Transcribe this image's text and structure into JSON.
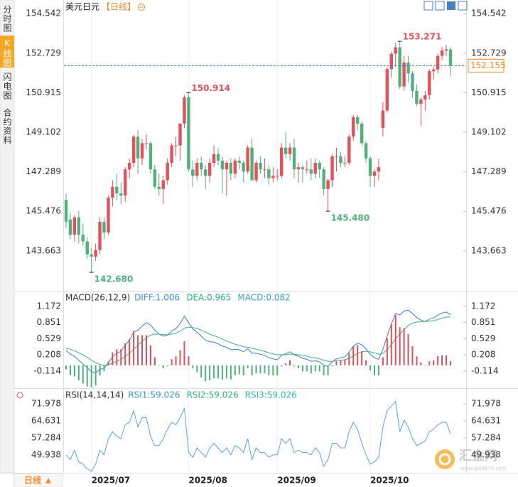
{
  "ui": {
    "tabs": [
      "分时图",
      "K线图",
      "闪电图",
      "合约资料"
    ],
    "active_tab": 1,
    "active_color": "#f5a623",
    "period_button": "日线",
    "watermark": {
      "name": "汇金网",
      "url": "www.gold678.com"
    }
  },
  "chart_data": [
    {
      "type": "candlestick",
      "title": "美元日元",
      "period": "【日线】",
      "categories": [
        null,
        null,
        null,
        null,
        null,
        null,
        "2025/07",
        null,
        null,
        null,
        null,
        null,
        null,
        null,
        null,
        null,
        null,
        null,
        null,
        null,
        null,
        null,
        null,
        null,
        null,
        null,
        null,
        null,
        null,
        "2025/08",
        null,
        null,
        null,
        null,
        null,
        null,
        null,
        null,
        null,
        null,
        null,
        null,
        null,
        null,
        null,
        null,
        null,
        null,
        null,
        null,
        "2025/09",
        null,
        null,
        null,
        null,
        null,
        null,
        null,
        null,
        null,
        null,
        null,
        null,
        null,
        null,
        null,
        null,
        null,
        null,
        null,
        null,
        null,
        "2025/10",
        null,
        null,
        null,
        null,
        null,
        null,
        null,
        null,
        null,
        null,
        null,
        null,
        null,
        null,
        null,
        null,
        null,
        null,
        null
      ],
      "ohlc": [
        [
          146.0,
          146.3,
          144.7,
          145.0
        ],
        [
          145.1,
          145.4,
          144.2,
          144.4
        ],
        [
          144.4,
          145.3,
          144.1,
          145.2
        ],
        [
          145.2,
          145.5,
          144.0,
          144.4
        ],
        [
          144.4,
          144.9,
          143.9,
          144.1
        ],
        [
          144.1,
          144.3,
          143.3,
          143.5
        ],
        [
          143.5,
          143.8,
          142.68,
          143.4
        ],
        [
          143.4,
          144.0,
          143.2,
          143.7
        ],
        [
          143.7,
          145.2,
          143.5,
          145.0
        ],
        [
          145.0,
          145.2,
          144.2,
          144.5
        ],
        [
          144.5,
          146.2,
          144.4,
          146.1
        ],
        [
          146.1,
          146.9,
          145.7,
          146.6
        ],
        [
          146.6,
          147.2,
          146.0,
          146.3
        ],
        [
          146.3,
          146.8,
          145.8,
          146.2
        ],
        [
          146.2,
          147.5,
          145.9,
          147.4
        ],
        [
          147.4,
          147.9,
          147.0,
          147.7
        ],
        [
          147.7,
          149.0,
          147.5,
          148.9
        ],
        [
          148.9,
          149.2,
          147.2,
          147.9
        ],
        [
          147.9,
          148.8,
          147.6,
          148.6
        ],
        [
          148.6,
          149.0,
          148.3,
          148.6
        ],
        [
          148.6,
          148.7,
          147.2,
          147.4
        ],
        [
          147.4,
          147.6,
          146.5,
          146.6
        ],
        [
          146.6,
          147.2,
          146.2,
          146.5
        ],
        [
          146.5,
          147.1,
          145.8,
          146.9
        ],
        [
          146.9,
          147.9,
          146.7,
          147.7
        ],
        [
          147.7,
          148.6,
          147.5,
          148.5
        ],
        [
          148.5,
          148.9,
          148.0,
          148.5
        ],
        [
          148.5,
          149.5,
          147.8,
          149.5
        ],
        [
          149.5,
          150.8,
          149.3,
          150.7
        ],
        [
          150.7,
          150.914,
          147.3,
          147.4
        ],
        [
          147.4,
          147.8,
          146.6,
          147.1
        ],
        [
          147.1,
          147.9,
          146.9,
          147.7
        ],
        [
          147.7,
          148.0,
          147.1,
          147.4
        ],
        [
          147.4,
          147.6,
          146.5,
          147.1
        ],
        [
          147.1,
          147.9,
          146.8,
          147.7
        ],
        [
          147.7,
          148.5,
          147.5,
          148.1
        ],
        [
          148.1,
          148.4,
          147.6,
          147.8
        ],
        [
          147.8,
          148.0,
          146.3,
          147.4
        ],
        [
          147.4,
          147.8,
          146.2,
          147.7
        ],
        [
          147.7,
          147.9,
          146.9,
          147.2
        ],
        [
          147.2,
          147.9,
          147.0,
          147.8
        ],
        [
          147.8,
          148.0,
          147.4,
          147.7
        ],
        [
          147.7,
          147.8,
          146.8,
          147.3
        ],
        [
          147.3,
          148.5,
          147.2,
          148.4
        ],
        [
          148.4,
          148.8,
          146.9,
          146.9
        ],
        [
          146.9,
          147.8,
          146.8,
          147.7
        ],
        [
          147.7,
          148.0,
          147.2,
          147.4
        ],
        [
          147.4,
          147.9,
          147.0,
          147.4
        ],
        [
          147.4,
          147.6,
          146.7,
          147.0
        ],
        [
          147.0,
          147.5,
          146.8,
          147.1
        ],
        [
          147.1,
          147.4,
          146.9,
          147.1
        ],
        [
          147.1,
          148.6,
          147.0,
          148.4
        ],
        [
          148.4,
          149.1,
          147.9,
          148.1
        ],
        [
          148.1,
          148.6,
          147.8,
          148.4
        ],
        [
          148.4,
          148.8,
          147.0,
          147.4
        ],
        [
          147.4,
          147.7,
          146.8,
          147.5
        ],
        [
          147.5,
          147.6,
          146.8,
          147.4
        ],
        [
          147.4,
          147.8,
          147.2,
          147.4
        ],
        [
          147.4,
          147.9,
          146.9,
          147.2
        ],
        [
          147.2,
          147.9,
          147.0,
          147.7
        ],
        [
          147.7,
          147.8,
          147.0,
          147.4
        ],
        [
          147.4,
          147.5,
          146.2,
          146.5
        ],
        [
          146.5,
          147.0,
          145.48,
          146.9
        ],
        [
          146.9,
          148.1,
          146.6,
          148.0
        ],
        [
          148.0,
          148.4,
          147.3,
          148.0
        ],
        [
          148.0,
          148.2,
          147.5,
          147.7
        ],
        [
          147.7,
          148.0,
          147.5,
          147.7
        ],
        [
          147.7,
          149.0,
          147.6,
          148.9
        ],
        [
          148.9,
          149.9,
          148.7,
          149.8
        ],
        [
          149.8,
          149.9,
          149.2,
          149.5
        ],
        [
          149.5,
          149.6,
          148.5,
          148.6
        ],
        [
          148.6,
          148.7,
          147.7,
          147.9
        ],
        [
          147.9,
          148.0,
          146.6,
          147.1
        ],
        [
          147.1,
          147.4,
          146.6,
          147.3
        ],
        [
          147.3,
          147.9,
          146.9,
          147.5
        ],
        [
          149.3,
          150.5,
          148.9,
          150.1
        ],
        [
          150.1,
          152.1,
          150.0,
          152.0
        ],
        [
          152.0,
          152.8,
          151.6,
          152.7
        ],
        [
          152.7,
          153.2,
          152.1,
          153.0
        ],
        [
          153.0,
          153.271,
          151.1,
          151.2
        ],
        [
          151.2,
          152.6,
          151.0,
          152.3
        ],
        [
          152.3,
          152.6,
          151.4,
          151.8
        ],
        [
          151.8,
          151.9,
          150.7,
          151.0
        ],
        [
          151.0,
          151.3,
          150.3,
          150.4
        ],
        [
          150.4,
          150.7,
          149.4,
          150.6
        ],
        [
          150.6,
          151.0,
          150.1,
          150.8
        ],
        [
          150.8,
          152.0,
          150.6,
          151.9
        ],
        [
          151.9,
          152.1,
          151.5,
          151.98
        ],
        [
          151.98,
          152.7,
          151.8,
          152.6
        ],
        [
          152.6,
          153.0,
          152.4,
          152.85
        ],
        [
          152.85,
          153.1,
          152.6,
          152.9
        ],
        [
          152.9,
          153.0,
          151.7,
          152.155
        ]
      ],
      "up_color": "#e5505a",
      "down_color": "#4fb27c",
      "ylim": [
        141.8,
        154.84
      ],
      "yticks": [
        154.542,
        152.729,
        150.915,
        149.102,
        147.289,
        145.476,
        143.663
      ],
      "annotations": [
        {
          "value": 153.271,
          "label": "153.271"
        },
        {
          "value": 150.914,
          "label": "150.914"
        },
        {
          "value": 145.48,
          "label": "145.480"
        },
        {
          "value": 142.68,
          "label": "142.680"
        }
      ],
      "last_price": 152.155,
      "last_price_color": "#3a7bd5",
      "last_price_label_color": "#f08a2c"
    },
    {
      "type": "macd",
      "title": "MACD(26,12,9)",
      "legend": [
        {
          "label": "DIFF:1.006",
          "color": "#3a8ee6"
        },
        {
          "label": "DEA:0.965",
          "color": "#27b07b"
        },
        {
          "label": "MACD:0.082",
          "color": "#3a9de0"
        }
      ],
      "ylim": [
        -0.44,
        1.44
      ],
      "yticks": [
        1.172,
        0.851,
        0.529,
        0.208,
        -0.114
      ],
      "series": [
        {
          "color": "#3b7dd8",
          "values": [
            0.3,
            0.22,
            0.18,
            0.1,
            0.03,
            -0.05,
            -0.12,
            -0.15,
            -0.08,
            -0.06,
            0.05,
            0.17,
            0.24,
            0.28,
            0.4,
            0.5,
            0.66,
            0.7,
            0.78,
            0.85,
            0.8,
            0.7,
            0.62,
            0.58,
            0.6,
            0.68,
            0.73,
            0.83,
            0.98,
            0.85,
            0.72,
            0.66,
            0.58,
            0.5,
            0.47,
            0.46,
            0.43,
            0.38,
            0.36,
            0.31,
            0.32,
            0.31,
            0.27,
            0.33,
            0.24,
            0.24,
            0.22,
            0.2,
            0.15,
            0.13,
            0.11,
            0.2,
            0.23,
            0.27,
            0.21,
            0.18,
            0.14,
            0.12,
            0.08,
            0.09,
            0.07,
            0,
            -0.02,
            0.07,
            0.13,
            0.15,
            0.17,
            0.26,
            0.38,
            0.44,
            0.41,
            0.33,
            0.22,
            0.15,
            0.12,
            0.32,
            0.58,
            0.82,
            1.03,
            1.0,
            1.08,
            1.1,
            1.03,
            0.95,
            0.9,
            0.87,
            0.92,
            0.94,
            1.0,
            1.04,
            1.06,
            1.006
          ]
        },
        {
          "color": "#3fb07a",
          "values": [
            0.34,
            0.32,
            0.29,
            0.25,
            0.21,
            0.16,
            0.1,
            0.05,
            0.02,
            0,
            0.01,
            0.04,
            0.08,
            0.12,
            0.18,
            0.24,
            0.32,
            0.4,
            0.48,
            0.55,
            0.6,
            0.62,
            0.62,
            0.61,
            0.61,
            0.62,
            0.64,
            0.68,
            0.74,
            0.76,
            0.75,
            0.73,
            0.7,
            0.66,
            0.62,
            0.59,
            0.56,
            0.52,
            0.49,
            0.45,
            0.42,
            0.4,
            0.37,
            0.36,
            0.34,
            0.32,
            0.3,
            0.28,
            0.25,
            0.23,
            0.21,
            0.21,
            0.21,
            0.22,
            0.22,
            0.21,
            0.2,
            0.18,
            0.16,
            0.15,
            0.13,
            0.1,
            0.08,
            0.08,
            0.09,
            0.1,
            0.11,
            0.14,
            0.19,
            0.24,
            0.27,
            0.28,
            0.27,
            0.25,
            0.22,
            0.24,
            0.31,
            0.41,
            0.53,
            0.62,
            0.71,
            0.79,
            0.84,
            0.86,
            0.87,
            0.87,
            0.88,
            0.89,
            0.91,
            0.94,
            0.96,
            0.965
          ]
        },
        {
          "bars": true,
          "up_color": "#d9505a",
          "down_color": "#4fb27c",
          "values": [
            -0.08,
            -0.2,
            -0.22,
            -0.3,
            -0.36,
            -0.42,
            -0.44,
            -0.4,
            -0.2,
            -0.12,
            0.08,
            0.26,
            0.32,
            0.32,
            0.44,
            0.52,
            0.68,
            0.6,
            0.6,
            0.6,
            0.4,
            0.16,
            0,
            -0.06,
            -0.02,
            0.12,
            0.18,
            0.3,
            0.48,
            0.18,
            -0.06,
            -0.14,
            -0.24,
            -0.32,
            -0.3,
            -0.26,
            -0.26,
            -0.28,
            -0.26,
            -0.28,
            -0.2,
            -0.18,
            -0.2,
            -0.06,
            -0.2,
            -0.16,
            -0.16,
            -0.16,
            -0.2,
            -0.2,
            -0.2,
            -0.02,
            0.04,
            0.1,
            -0.02,
            -0.06,
            -0.12,
            -0.12,
            -0.16,
            -0.12,
            -0.12,
            -0.2,
            -0.2,
            -0.02,
            0.08,
            0.1,
            0.12,
            0.24,
            0.38,
            0.4,
            0.28,
            0.1,
            -0.1,
            -0.2,
            -0.2,
            0.16,
            0.54,
            0.82,
            1.0,
            0.76,
            0.74,
            0.62,
            0.38,
            0.18,
            0.06,
            0,
            0.08,
            0.1,
            0.18,
            0.2,
            0.2,
            0.082
          ]
        }
      ]
    },
    {
      "type": "line",
      "title": "RSI(14,14,14)",
      "legend": [
        {
          "label": "RSI1:59.026",
          "color": "#3a8ee6"
        },
        {
          "label": "RSI2:59.026",
          "color": "#27b07b"
        },
        {
          "label": "RSI3:59.026",
          "color": "#2ab3c6"
        }
      ],
      "ylim": [
        42.3,
        78.1
      ],
      "yticks": [
        71.978,
        64.631,
        57.284,
        49.938
      ],
      "series": [
        {
          "color": "#5aa0e8",
          "values": [
            50,
            48,
            52,
            47,
            46,
            44,
            43,
            46,
            52,
            50,
            57,
            60,
            58,
            57,
            63,
            64,
            69,
            62,
            66,
            66,
            58,
            54,
            54,
            57,
            61,
            64,
            63,
            66,
            70,
            51,
            49,
            53,
            51,
            49,
            53,
            55,
            53,
            51,
            53,
            50,
            54,
            53,
            51,
            57,
            48,
            53,
            51,
            51,
            49,
            50,
            50,
            57,
            55,
            57,
            51,
            52,
            51,
            51,
            50,
            53,
            51,
            45,
            48,
            55,
            55,
            53,
            53,
            60,
            64,
            61,
            55,
            50,
            46,
            47,
            49,
            62,
            69,
            71,
            73,
            60,
            65,
            62,
            57,
            54,
            55,
            56,
            60,
            61,
            63,
            64,
            64,
            59.026
          ]
        }
      ]
    }
  ]
}
